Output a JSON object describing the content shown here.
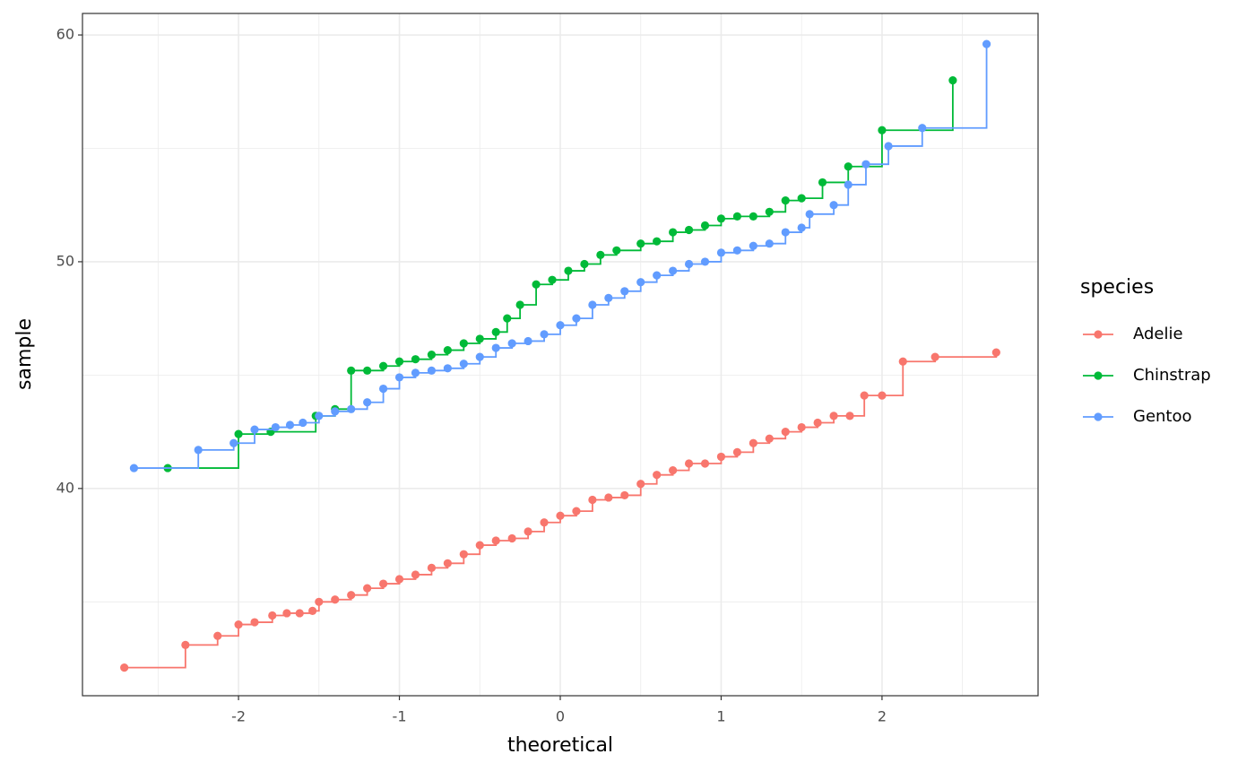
{
  "chart_data": {
    "type": "qq-step",
    "x_label": "theoretical",
    "y_label": "sample",
    "legend_title": "species",
    "legend": "right",
    "xlim": [
      -2.97,
      2.97
    ],
    "ylim": [
      30.86,
      60.95
    ],
    "xticks": [
      -2,
      -1,
      0,
      1,
      2
    ],
    "yticks": [
      40,
      50,
      60
    ],
    "x_minor_grid": [
      -2.5,
      -1.5,
      -0.5,
      0.5,
      1.5,
      2.5
    ],
    "y_minor_grid": [
      35,
      45,
      55
    ],
    "grid": true,
    "series": [
      {
        "name": "Adelie",
        "color": "#F8766D",
        "x": [
          -2.71,
          -2.33,
          -2.13,
          -2.0,
          -1.9,
          -1.79,
          -1.7,
          -1.62,
          -1.54,
          -1.5,
          -1.4,
          -1.3,
          -1.2,
          -1.1,
          -1.0,
          -0.9,
          -0.8,
          -0.7,
          -0.6,
          -0.5,
          -0.4,
          -0.3,
          -0.2,
          -0.1,
          0,
          0.1,
          0.2,
          0.3,
          0.4,
          0.5,
          0.6,
          0.7,
          0.8,
          0.9,
          1.0,
          1.1,
          1.2,
          1.3,
          1.4,
          1.5,
          1.6,
          1.7,
          1.8,
          1.89,
          2.0,
          2.13,
          2.33,
          2.71
        ],
        "values": [
          32.1,
          33.1,
          33.5,
          34.0,
          34.1,
          34.4,
          34.5,
          34.5,
          34.6,
          35.0,
          35.1,
          35.3,
          35.6,
          35.8,
          36.0,
          36.2,
          36.5,
          36.7,
          37.1,
          37.5,
          37.7,
          37.8,
          38.1,
          38.5,
          38.8,
          39.0,
          39.5,
          39.6,
          39.7,
          40.2,
          40.6,
          40.8,
          41.1,
          41.1,
          41.4,
          41.6,
          42.0,
          42.2,
          42.5,
          42.7,
          42.9,
          43.2,
          43.2,
          44.1,
          44.1,
          45.6,
          45.8,
          46.0
        ]
      },
      {
        "name": "Chinstrap",
        "color": "#00BA38",
        "x": [
          -2.44,
          -2.0,
          -1.8,
          -1.52,
          -1.4,
          -1.3,
          -1.2,
          -1.1,
          -1.0,
          -0.9,
          -0.8,
          -0.7,
          -0.6,
          -0.5,
          -0.4,
          -0.33,
          -0.25,
          -0.15,
          -0.05,
          0.05,
          0.15,
          0.25,
          0.35,
          0.5,
          0.6,
          0.7,
          0.8,
          0.9,
          1.0,
          1.1,
          1.2,
          1.3,
          1.4,
          1.5,
          1.63,
          1.79,
          2.0,
          2.44
        ],
        "values": [
          40.9,
          42.4,
          42.5,
          43.2,
          43.5,
          45.2,
          45.2,
          45.4,
          45.6,
          45.7,
          45.9,
          46.1,
          46.4,
          46.6,
          46.9,
          47.5,
          48.1,
          49.0,
          49.2,
          49.6,
          49.9,
          50.3,
          50.5,
          50.8,
          50.9,
          51.3,
          51.4,
          51.6,
          51.9,
          52.0,
          52.0,
          52.2,
          52.7,
          52.8,
          53.5,
          54.2,
          55.8,
          58.0
        ]
      },
      {
        "name": "Gentoo",
        "color": "#619CFF",
        "x": [
          -2.65,
          -2.25,
          -2.03,
          -1.9,
          -1.77,
          -1.68,
          -1.6,
          -1.5,
          -1.4,
          -1.3,
          -1.2,
          -1.1,
          -1.0,
          -0.9,
          -0.8,
          -0.7,
          -0.6,
          -0.5,
          -0.4,
          -0.3,
          -0.2,
          -0.1,
          0,
          0.1,
          0.2,
          0.3,
          0.4,
          0.5,
          0.6,
          0.7,
          0.8,
          0.9,
          1.0,
          1.1,
          1.2,
          1.3,
          1.4,
          1.5,
          1.55,
          1.7,
          1.79,
          1.9,
          2.04,
          2.25,
          2.65
        ],
        "values": [
          40.9,
          41.7,
          42.0,
          42.6,
          42.7,
          42.8,
          42.9,
          43.2,
          43.4,
          43.5,
          43.8,
          44.4,
          44.9,
          45.1,
          45.2,
          45.3,
          45.5,
          45.8,
          46.2,
          46.4,
          46.5,
          46.8,
          47.2,
          47.5,
          48.1,
          48.4,
          48.7,
          49.1,
          49.4,
          49.6,
          49.9,
          50.0,
          50.4,
          50.5,
          50.7,
          50.8,
          51.3,
          51.5,
          52.1,
          52.5,
          53.4,
          54.3,
          55.1,
          55.9,
          59.6
        ]
      }
    ]
  }
}
